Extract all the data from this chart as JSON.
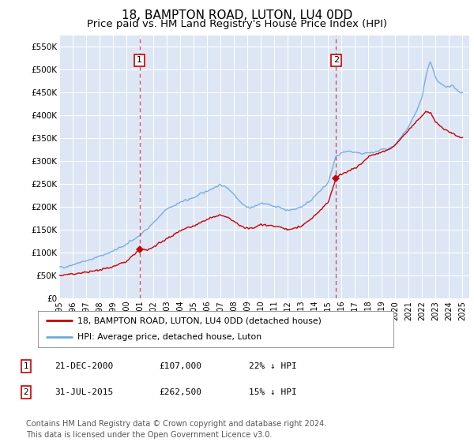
{
  "title": "18, BAMPTON ROAD, LUTON, LU4 0DD",
  "subtitle": "Price paid vs. HM Land Registry's House Price Index (HPI)",
  "title_fontsize": 11,
  "subtitle_fontsize": 9.5,
  "background_color": "#ffffff",
  "plot_bg_color": "#dce6f5",
  "grid_color": "#ffffff",
  "ylim": [
    0,
    575000
  ],
  "yticks": [
    0,
    50000,
    100000,
    150000,
    200000,
    250000,
    300000,
    350000,
    400000,
    450000,
    500000,
    550000
  ],
  "ytick_labels": [
    "£0",
    "£50K",
    "£100K",
    "£150K",
    "£200K",
    "£250K",
    "£300K",
    "£350K",
    "£400K",
    "£450K",
    "£500K",
    "£550K"
  ],
  "xlim_start": 1995.0,
  "xlim_end": 2025.5,
  "xtick_years": [
    1995,
    1996,
    1997,
    1998,
    1999,
    2000,
    2001,
    2002,
    2003,
    2004,
    2005,
    2006,
    2007,
    2008,
    2009,
    2010,
    2011,
    2012,
    2013,
    2014,
    2015,
    2016,
    2017,
    2018,
    2019,
    2020,
    2021,
    2022,
    2023,
    2024,
    2025
  ],
  "sale1_x": 2000.97,
  "sale1_y": 107000,
  "sale1_label": "1",
  "sale2_x": 2015.58,
  "sale2_y": 262500,
  "sale2_label": "2",
  "line_color_hpi": "#6fa8dc",
  "line_color_price": "#cc0000",
  "dashed_line_color": "#cc0000",
  "legend_label_price": "18, BAMPTON ROAD, LUTON, LU4 0DD (detached house)",
  "legend_label_hpi": "HPI: Average price, detached house, Luton",
  "table_entries": [
    {
      "num": "1",
      "date": "21-DEC-2000",
      "price": "£107,000",
      "hpi": "22% ↓ HPI"
    },
    {
      "num": "2",
      "date": "31-JUL-2015",
      "price": "£262,500",
      "hpi": "15% ↓ HPI"
    }
  ],
  "footnote": "Contains HM Land Registry data © Crown copyright and database right 2024.\nThis data is licensed under the Open Government Licence v3.0.",
  "footnote_fontsize": 7.0
}
